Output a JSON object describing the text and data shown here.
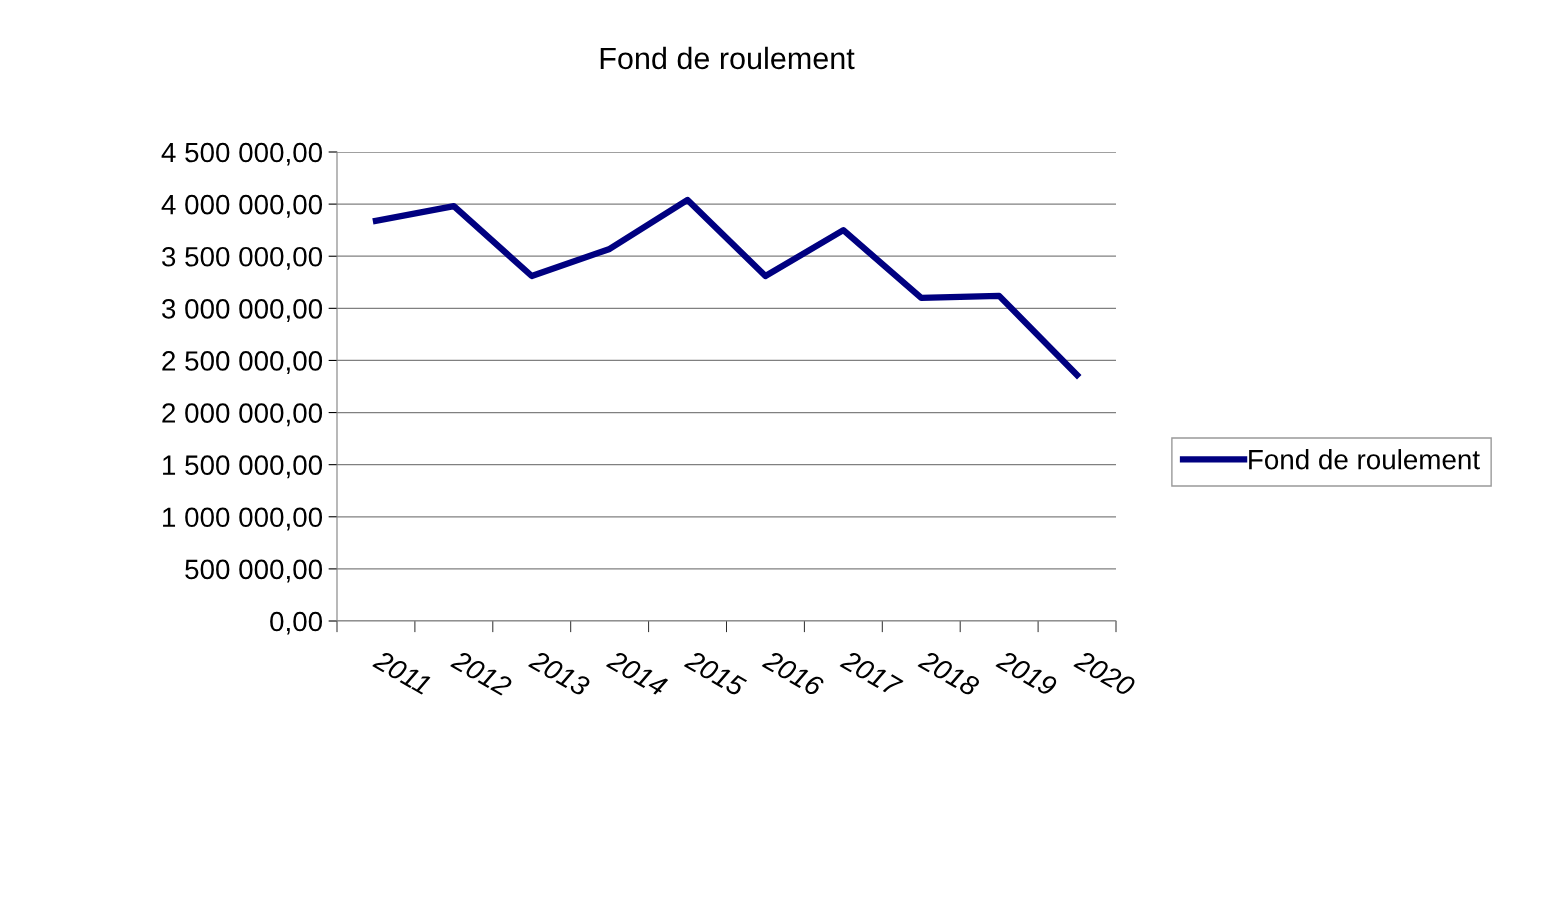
{
  "chart_data": {
    "type": "line",
    "title": "Fond de roulement",
    "categories": [
      "2011",
      "2012",
      "2013",
      "2014",
      "2015",
      "2016",
      "2017",
      "2018",
      "2019",
      "2020"
    ],
    "series": [
      {
        "name": "Fond de roulement",
        "color": "#000080",
        "values": [
          3840000,
          3980000,
          3310000,
          3570000,
          4040000,
          3310000,
          3750000,
          3100000,
          3120000,
          2360000
        ]
      }
    ],
    "ylim": [
      0,
      4500000
    ],
    "yticks": [
      {
        "value": 0,
        "label": "0,00"
      },
      {
        "value": 500000,
        "label": "500 000,00"
      },
      {
        "value": 1000000,
        "label": "1 000 000,00"
      },
      {
        "value": 1500000,
        "label": "1 500 000,00"
      },
      {
        "value": 2000000,
        "label": "2 000 000,00"
      },
      {
        "value": 2500000,
        "label": "2 500 000,00"
      },
      {
        "value": 3000000,
        "label": "3 000 000,00"
      },
      {
        "value": 3500000,
        "label": "3 500 000,00"
      },
      {
        "value": 4000000,
        "label": "4 000 000,00"
      },
      {
        "value": 4500000,
        "label": "4 500 000,00"
      }
    ],
    "grid": "y",
    "legend": "right",
    "marker": "none",
    "line_style": "solid"
  }
}
